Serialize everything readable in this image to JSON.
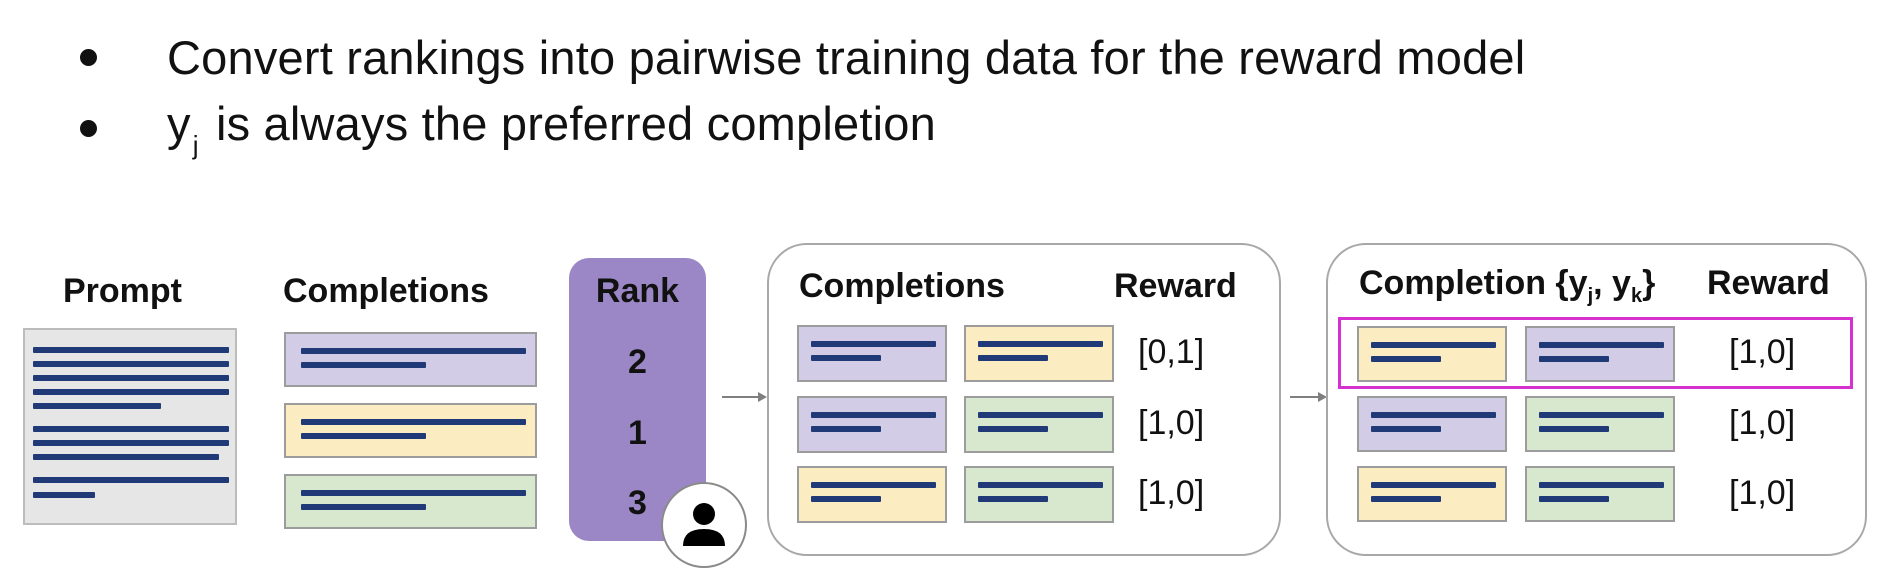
{
  "bullets": [
    {
      "text": "Convert rankings into pairwise training data for the reward model"
    },
    {
      "prefix": "y",
      "sub": "j",
      "rest": " is always the preferred completion"
    }
  ],
  "left": {
    "prompt_title": "Prompt",
    "completions_title": "Completions",
    "rank_title": "Rank",
    "ranks": [
      "2",
      "1",
      "3"
    ],
    "completion_colors": [
      "purple",
      "yellow",
      "green"
    ]
  },
  "middle": {
    "completions_title": "Completions",
    "reward_title": "Reward",
    "rows": [
      {
        "a": "purple",
        "b": "yellow",
        "reward": "[0,1]"
      },
      {
        "a": "purple",
        "b": "green",
        "reward": "[1,0]"
      },
      {
        "a": "yellow",
        "b": "green",
        "reward": "[1,0]"
      }
    ]
  },
  "right": {
    "completion_title_prefix": "Completion {y",
    "completion_title_sub1": "j",
    "completion_title_mid": ", y",
    "completion_title_sub2": "k",
    "completion_title_suffix": "}",
    "reward_title": "Reward",
    "rows": [
      {
        "a": "yellow",
        "b": "purple",
        "reward": "[1,0]",
        "highlighted": true
      },
      {
        "a": "purple",
        "b": "green",
        "reward": "[1,0]"
      },
      {
        "a": "yellow",
        "b": "green",
        "reward": "[1,0]"
      }
    ]
  },
  "colors": {
    "purple": "#d3cce6",
    "yellow": "#fcecc1",
    "green": "#d7e8cf",
    "rank": "#9c87c6",
    "line": "#1f3a77",
    "highlight": "#d531cf"
  },
  "icons": {
    "user": "user-icon"
  }
}
